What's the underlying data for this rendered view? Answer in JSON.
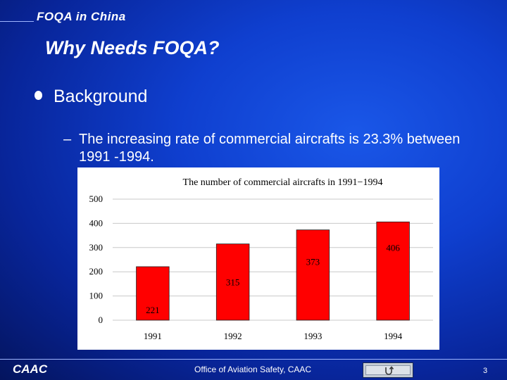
{
  "header": {
    "section_title": "FOQA in China"
  },
  "slide": {
    "title": "Why Needs FOQA?",
    "bullet": "Background",
    "sub_dash": "–",
    "sub_bullet": "The increasing rate of commercial aircrafts is 23.3% between 1991 -1994."
  },
  "chart_data": {
    "type": "bar",
    "title": "The number of commercial aircrafts in 1991−1994",
    "categories": [
      "1991",
      "1992",
      "1993",
      "1994"
    ],
    "values": [
      221,
      315,
      373,
      406
    ],
    "y_ticks": [
      "0",
      "100",
      "200",
      "300",
      "400",
      "500"
    ],
    "ylim": [
      0,
      500
    ],
    "grid": true,
    "bar_color": "#ff0000",
    "xlabel": "",
    "ylabel": ""
  },
  "footer": {
    "logo": "CAAC",
    "center_text": "Office of Aviation Safety, CAAC",
    "nav_icon": "return-arrow-icon",
    "page_number": "3"
  },
  "colors": {
    "background": "#0f3fcf",
    "bar": "#ff0000",
    "text": "#ffffff"
  }
}
